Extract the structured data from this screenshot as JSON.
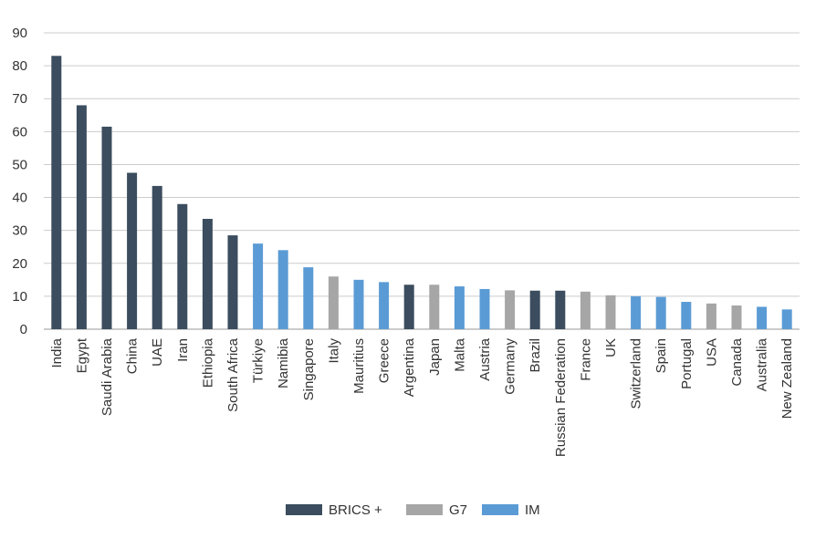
{
  "chart_data": {
    "type": "bar",
    "title": "",
    "xlabel": "",
    "ylabel": "",
    "ylim": [
      0,
      90
    ],
    "yticks": [
      0,
      10,
      20,
      30,
      40,
      50,
      60,
      70,
      80,
      90
    ],
    "grid": true,
    "legend_position": "bottom-center",
    "categories": [
      "India",
      "Egypt",
      "Saudi Arabia",
      "China",
      "UAE",
      "Iran",
      "Ethiopia",
      "South Africa",
      "Türkiye",
      "Namibia",
      "Singapore",
      "Italy",
      "Mauritius",
      "Greece",
      "Argentina",
      "Japan",
      "Malta",
      "Austria",
      "Germany",
      "Brazil",
      "Russian Federation",
      "France",
      "UK",
      "Switzerland",
      "Spain",
      "Portugal",
      "USA",
      "Canada",
      "Australia",
      "New Zealand"
    ],
    "values": [
      83,
      68,
      61.5,
      47.5,
      43.5,
      38,
      33.5,
      28.5,
      26,
      24,
      18.8,
      16,
      15,
      14.3,
      13.5,
      13.5,
      13,
      12.2,
      11.8,
      11.7,
      11.7,
      11.4,
      10.3,
      10,
      9.8,
      8.3,
      7.8,
      7.2,
      6.8,
      6
    ],
    "groups": [
      "BRICS +",
      "BRICS +",
      "BRICS +",
      "BRICS +",
      "BRICS +",
      "BRICS +",
      "BRICS +",
      "BRICS +",
      "IM",
      "IM",
      "IM",
      "G7",
      "IM",
      "IM",
      "BRICS +",
      "G7",
      "IM",
      "IM",
      "G7",
      "BRICS +",
      "BRICS +",
      "G7",
      "G7",
      "IM",
      "IM",
      "IM",
      "G7",
      "G7",
      "IM",
      "IM"
    ],
    "legend": [
      {
        "name": "BRICS +",
        "color": "#3b4d5e"
      },
      {
        "name": "G7",
        "color": "#a6a6a6"
      },
      {
        "name": "IM",
        "color": "#5b9bd5"
      }
    ]
  }
}
